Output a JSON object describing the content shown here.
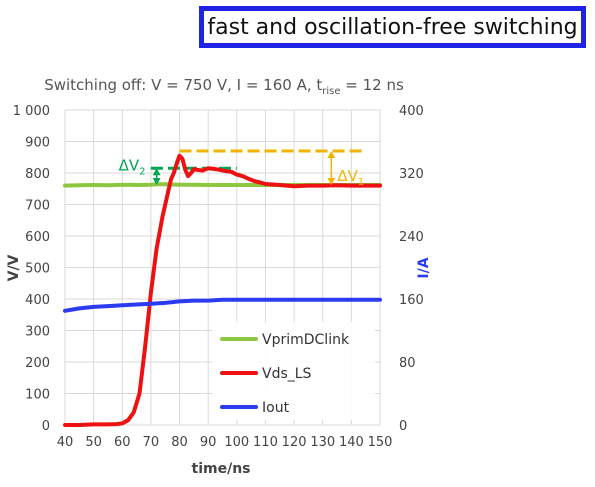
{
  "banner": {
    "text": "fast and oscillation-free switching"
  },
  "chart_data": {
    "type": "line",
    "title_main": "Switching off: V = 750 V, I = 160 A, t",
    "title_sub": "rise",
    "title_tail": " = 12 ns",
    "xlabel": "time/ns",
    "ylabel_left": "V/V",
    "ylabel_right": "I/A",
    "xlim": [
      40,
      150
    ],
    "ylim_left": [
      0,
      1000
    ],
    "ylim_right": [
      0,
      400
    ],
    "x_ticks": [
      "40",
      "50",
      "60",
      "70",
      "80",
      "90",
      "100",
      "110",
      "120",
      "130",
      "140",
      "150"
    ],
    "y_left_ticks": [
      "0",
      "100",
      "200",
      "300",
      "400",
      "500",
      "600",
      "700",
      "800",
      "900",
      "1 000"
    ],
    "y_right_ticks": [
      "0",
      "80",
      "160",
      "240",
      "320",
      "400"
    ],
    "grid": true,
    "legend_position": "bottom-right",
    "series": [
      {
        "name": "VprimDClink",
        "axis": "left",
        "color": "#8dc63f",
        "x": [
          40,
          45,
          50,
          55,
          60,
          65,
          70,
          72,
          75,
          80,
          85,
          90,
          95,
          100,
          110,
          120,
          130,
          140,
          150
        ],
        "y": [
          760,
          761,
          762,
          761,
          763,
          762,
          763,
          764,
          764,
          763,
          763,
          762,
          762,
          762,
          762,
          762,
          762,
          762,
          762
        ]
      },
      {
        "name": "Vds_LS",
        "axis": "left",
        "color": "#ee1111",
        "x": [
          40,
          45,
          50,
          55,
          58,
          60,
          62,
          64,
          66,
          68,
          70,
          72,
          74,
          76,
          77,
          78,
          79,
          80,
          81,
          82,
          83,
          84,
          85,
          86,
          88,
          90,
          92,
          94,
          96,
          98,
          100,
          102,
          104,
          106,
          108,
          110,
          115,
          120,
          125,
          130,
          135,
          140,
          145,
          150
        ],
        "y": [
          0,
          0,
          2,
          2,
          3,
          5,
          15,
          40,
          100,
          250,
          420,
          560,
          660,
          740,
          780,
          800,
          830,
          855,
          845,
          810,
          790,
          800,
          812,
          810,
          808,
          815,
          813,
          810,
          806,
          804,
          795,
          790,
          782,
          775,
          770,
          765,
          762,
          758,
          760,
          760,
          761,
          760,
          760,
          760
        ]
      },
      {
        "name": "Iout",
        "axis": "right",
        "color": "#2a3bf0",
        "x": [
          40,
          45,
          50,
          55,
          60,
          65,
          70,
          75,
          80,
          85,
          90,
          95,
          100,
          110,
          120,
          130,
          140,
          150
        ],
        "y": [
          145,
          148,
          150,
          151,
          152,
          153,
          154,
          155,
          157,
          158,
          158,
          159,
          159,
          159,
          159,
          159,
          159,
          159
        ]
      }
    ],
    "annotations": {
      "dv1": {
        "label": "ΔV",
        "sub": "1",
        "color": "#f0b400",
        "level": 870,
        "x_from": 80,
        "x_to": 145,
        "arrow_x": 133,
        "arrow_from": 870,
        "arrow_to": 762
      },
      "dv2": {
        "label": "ΔV",
        "sub": "2",
        "color": "#00a651",
        "level": 815,
        "x_from": 70,
        "x_to": 100,
        "arrow_x": 72,
        "arrow_from": 815,
        "arrow_to": 762
      },
      "ref_level": 762
    }
  }
}
